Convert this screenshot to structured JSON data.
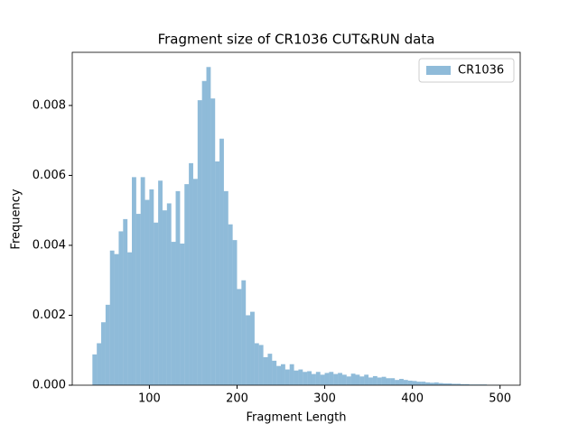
{
  "chart_data": {
    "type": "histogram",
    "title": "Fragment size of CR1036 CUT&RUN data",
    "x_label": "Fragment Length",
    "y_label": "Frequency",
    "bins": [
      35,
      40,
      45,
      50,
      55,
      60,
      65,
      70,
      75,
      80,
      85,
      90,
      95,
      100,
      105,
      110,
      115,
      120,
      125,
      130,
      135,
      140,
      145,
      150,
      155,
      160,
      165,
      170,
      175,
      180,
      185,
      190,
      195,
      200,
      205,
      210,
      215,
      220,
      225,
      230,
      235,
      240,
      245,
      250,
      255,
      260,
      265,
      270,
      275,
      280,
      285,
      290,
      295,
      300,
      305,
      310,
      315,
      320,
      325,
      330,
      335,
      340,
      345,
      350,
      355,
      360,
      365,
      370,
      375,
      380,
      385,
      390,
      395,
      400,
      405,
      410,
      415,
      420,
      425,
      430,
      435,
      440,
      445,
      450,
      455,
      460,
      465,
      470,
      475,
      480,
      485,
      490,
      495,
      500
    ],
    "series": [
      {
        "name": "CR1036",
        "color": "#1f77b4",
        "alpha": 0.5,
        "values": [
          0.00088,
          0.0012,
          0.0018,
          0.0023,
          0.00385,
          0.00375,
          0.0044,
          0.00475,
          0.0038,
          0.00595,
          0.0049,
          0.00595,
          0.0053,
          0.0056,
          0.00465,
          0.00585,
          0.005,
          0.0052,
          0.0041,
          0.00555,
          0.00405,
          0.00575,
          0.00635,
          0.0059,
          0.00815,
          0.0087,
          0.0091,
          0.0082,
          0.0064,
          0.00705,
          0.00555,
          0.0046,
          0.00415,
          0.00275,
          0.003,
          0.002,
          0.0021,
          0.0012,
          0.00115,
          0.0008,
          0.0009,
          0.0007,
          0.00055,
          0.0006,
          0.00045,
          0.0006,
          0.00042,
          0.00045,
          0.00038,
          0.0004,
          0.00032,
          0.00038,
          0.0003,
          0.00035,
          0.00038,
          0.00032,
          0.00035,
          0.0003,
          0.00025,
          0.00033,
          0.0003,
          0.00025,
          0.0003,
          0.00022,
          0.00026,
          0.00022,
          0.00024,
          0.0002,
          0.0002,
          0.00015,
          0.00018,
          0.00015,
          0.00013,
          0.00012,
          0.0001,
          0.0001,
          8e-05,
          7e-05,
          8e-05,
          6e-05,
          5e-05,
          5e-05,
          4e-05,
          4e-05,
          3e-05,
          3e-05,
          2e-05,
          2e-05,
          2e-05,
          2e-05,
          1e-05,
          1e-05,
          1e-05
        ]
      }
    ],
    "xlim": [
      12,
      523
    ],
    "xticks": [
      100,
      200,
      300,
      400,
      500
    ],
    "ylim": [
      0,
      0.00952
    ],
    "yticks": [
      {
        "value": 0,
        "label": "0.000"
      },
      0.002,
      0.004,
      0.006,
      0.008
    ],
    "legend": "upper right"
  }
}
